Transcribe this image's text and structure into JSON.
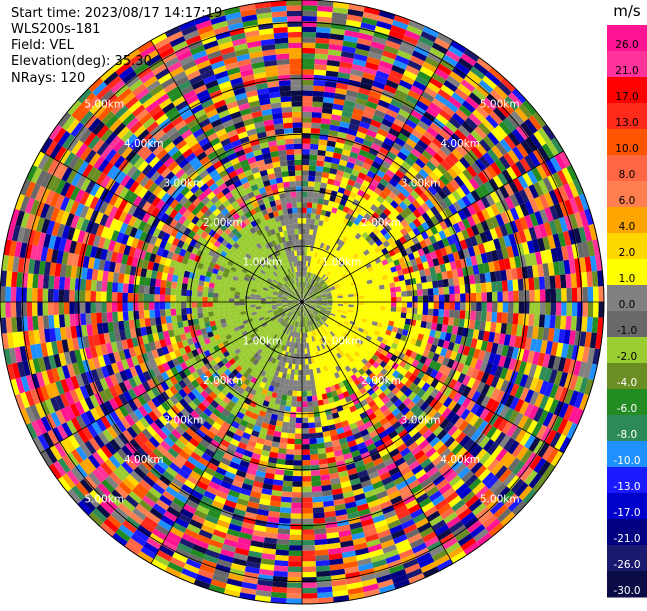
{
  "header": {
    "start_time": "Start time: 2023/08/17 14:17:19",
    "instrument": "WLS200s-181",
    "field": "Field: VEL",
    "elevation": "Elevation(deg): 35.30",
    "nrays": "NRays: 120"
  },
  "chart_data": {
    "type": "polar_ppi",
    "units": "m/s",
    "field": "VEL",
    "nrays": 120,
    "range_rings_km": [
      1.0,
      2.0,
      3.0,
      4.0,
      5.0
    ],
    "range_ring_labels": [
      "1.00km",
      "2.00km",
      "3.00km",
      "4.00km",
      "5.00km"
    ],
    "colorbar": {
      "tick_labels": [
        "26.0",
        "21.0",
        "17.0",
        "13.0",
        "10.0",
        "8.0",
        "6.0",
        "4.0",
        "2.0",
        "1.0",
        "0.0",
        "-1.0",
        "-2.0",
        "-4.0",
        "-6.0",
        "-8.0",
        "-10.0",
        "-13.0",
        "-17.0",
        "-21.0",
        "-26.0",
        "-30.0"
      ],
      "colors": [
        "#ff1493",
        "#ff3399",
        "#ff0000",
        "#ff2a1a",
        "#ff5500",
        "#ff6644",
        "#ff7f50",
        "#ffa500",
        "#ffd700",
        "#ffff00",
        "#808080",
        "#696969",
        "#9acd32",
        "#6b8e23",
        "#228b22",
        "#2e8b57",
        "#1e90ff",
        "#1a1aff",
        "#0000cd",
        "#000080",
        "#191970",
        "#0b0b45"
      ]
    },
    "pattern_note": ""
  }
}
